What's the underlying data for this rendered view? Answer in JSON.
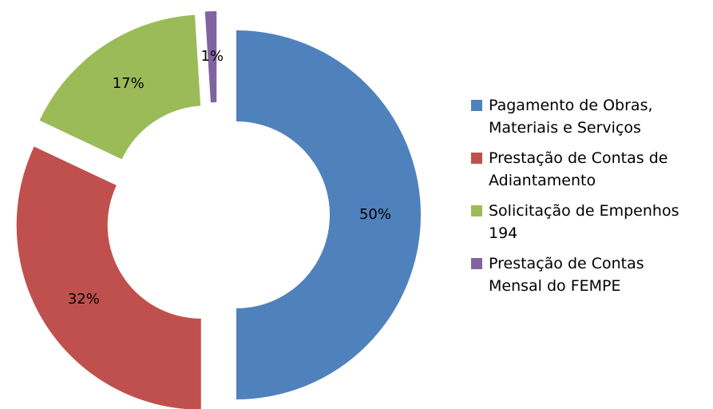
{
  "chart_data": {
    "type": "donut",
    "categories": [
      "Pagamento de Obras, Materiais e Serviços",
      "Prestação de Contas de Adiantamento",
      "Solicitação de Empenhos 194",
      "Prestação de Contas Mensal do FEMPE"
    ],
    "values": [
      50,
      32,
      17,
      1
    ],
    "value_labels": [
      "50%",
      "32%",
      "17%",
      "1%"
    ],
    "colors": [
      "#4f81bd",
      "#c0504d",
      "#9bbb59",
      "#8064a2"
    ],
    "legend": "right"
  }
}
